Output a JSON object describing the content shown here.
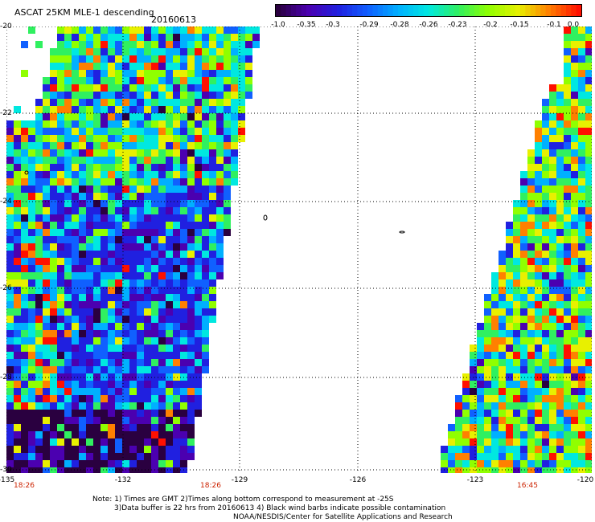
{
  "header": {
    "title": "ASCAT 25KM MLE-1 descending",
    "date": "20160613"
  },
  "colorbar": {
    "tick_labels": [
      "-1.0",
      "-0.35",
      "-0.3",
      "-0.29",
      "-0.28",
      "-0.26",
      "-0.23",
      "-0.2",
      "-0.15",
      "-0.1",
      "0.0"
    ],
    "colors": [
      "#2a0040",
      "#4b00b0",
      "#2020e0",
      "#1060ff",
      "#00b0ff",
      "#00e8e0",
      "#30f060",
      "#90ff00",
      "#e8f000",
      "#ff8000",
      "#ff1000"
    ]
  },
  "map": {
    "lat_labels": [
      "-20",
      "-22",
      "-24",
      "-26",
      "-28",
      "-30"
    ],
    "lon_labels": [
      "-135",
      "-132",
      "-129",
      "-126",
      "-123",
      "-120"
    ],
    "time_labels": [
      "18:26",
      "18:26",
      "16:45"
    ]
  },
  "notes": {
    "line1": "Note: 1) Times are GMT 2)Times along bottom correspond to measurement at -25S",
    "line2": "3)Data buffer is 22 hrs from 20160613 4) Black wind barbs indicate possible contamination",
    "line3": "NOAA/NESDIS/Center for Satellite Applications and Research"
  }
}
